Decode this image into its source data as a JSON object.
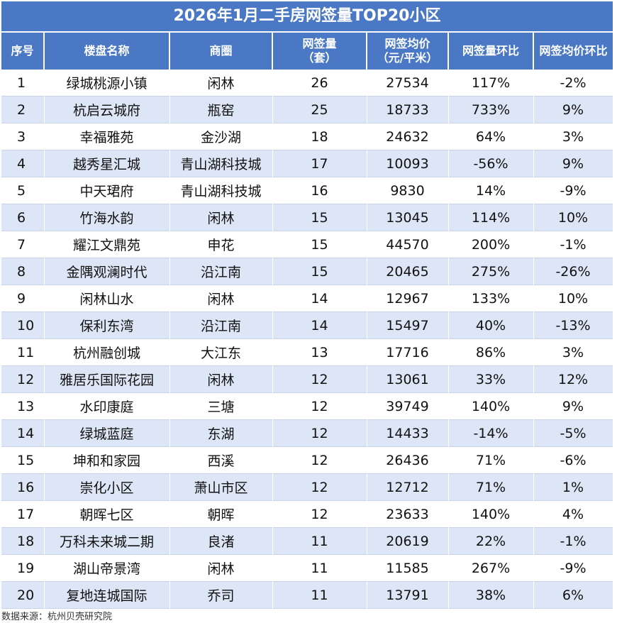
{
  "title": "2026年1月二手房网签量TOP20小区",
  "columns": {
    "no": "序号",
    "name": "楼盘名称",
    "area": "商圈",
    "volume_line1": "网签量",
    "volume_line2": "（套）",
    "price_line1": "网签均价",
    "price_line2": "（元/平米）",
    "volume_mom": "网签量环比",
    "price_mom": "网签均价环比"
  },
  "source": "数据来源：杭州贝壳研究院",
  "chart_data": {
    "type": "table",
    "title": "2026年1月二手房网签量TOP20小区",
    "rows": [
      {
        "no": "1",
        "name": "绿城桃源小镇",
        "area": "闲林",
        "volume": 26,
        "price": 27534,
        "volume_mom": "117%",
        "price_mom": "-2%"
      },
      {
        "no": "2",
        "name": "杭启云城府",
        "area": "瓶窑",
        "volume": 25,
        "price": 18733,
        "volume_mom": "733%",
        "price_mom": "9%"
      },
      {
        "no": "3",
        "name": "幸福雅苑",
        "area": "金沙湖",
        "volume": 18,
        "price": 24632,
        "volume_mom": "64%",
        "price_mom": "3%"
      },
      {
        "no": "4",
        "name": "越秀星汇城",
        "area": "青山湖科技城",
        "volume": 17,
        "price": 10093,
        "volume_mom": "-56%",
        "price_mom": "9%"
      },
      {
        "no": "5",
        "name": "中天珺府",
        "area": "青山湖科技城",
        "volume": 16,
        "price": 9830,
        "volume_mom": "14%",
        "price_mom": "-9%"
      },
      {
        "no": "6",
        "name": "竹海水韵",
        "area": "闲林",
        "volume": 15,
        "price": 13045,
        "volume_mom": "114%",
        "price_mom": "10%"
      },
      {
        "no": "7",
        "name": "耀江文鼎苑",
        "area": "申花",
        "volume": 15,
        "price": 44570,
        "volume_mom": "200%",
        "price_mom": "-1%"
      },
      {
        "no": "8",
        "name": "金隅观澜时代",
        "area": "沿江南",
        "volume": 15,
        "price": 20465,
        "volume_mom": "275%",
        "price_mom": "-26%"
      },
      {
        "no": "9",
        "name": "闲林山水",
        "area": "闲林",
        "volume": 14,
        "price": 12967,
        "volume_mom": "133%",
        "price_mom": "10%"
      },
      {
        "no": "10",
        "name": "保利东湾",
        "area": "沿江南",
        "volume": 14,
        "price": 15497,
        "volume_mom": "40%",
        "price_mom": "-13%"
      },
      {
        "no": "11",
        "name": "杭州融创城",
        "area": "大江东",
        "volume": 13,
        "price": 17716,
        "volume_mom": "86%",
        "price_mom": "3%"
      },
      {
        "no": "12",
        "name": "雅居乐国际花园",
        "area": "闲林",
        "volume": 12,
        "price": 13061,
        "volume_mom": "33%",
        "price_mom": "12%"
      },
      {
        "no": "13",
        "name": "水印康庭",
        "area": "三塘",
        "volume": 12,
        "price": 39749,
        "volume_mom": "140%",
        "price_mom": "9%"
      },
      {
        "no": "14",
        "name": "绿城蓝庭",
        "area": "东湖",
        "volume": 12,
        "price": 14433,
        "volume_mom": "-14%",
        "price_mom": "-5%"
      },
      {
        "no": "15",
        "name": "坤和和家园",
        "area": "西溪",
        "volume": 12,
        "price": 26436,
        "volume_mom": "71%",
        "price_mom": "-6%"
      },
      {
        "no": "16",
        "name": "崇化小区",
        "area": "萧山市区",
        "volume": 12,
        "price": 12712,
        "volume_mom": "71%",
        "price_mom": "1%"
      },
      {
        "no": "17",
        "name": "朝晖七区",
        "area": "朝晖",
        "volume": 12,
        "price": 23633,
        "volume_mom": "140%",
        "price_mom": "4%"
      },
      {
        "no": "18",
        "name": "万科未来城二期",
        "area": "良渚",
        "volume": 11,
        "price": 20619,
        "volume_mom": "22%",
        "price_mom": "-1%"
      },
      {
        "no": "19",
        "name": "湖山帝景湾",
        "area": "闲林",
        "volume": 11,
        "price": 11585,
        "volume_mom": "267%",
        "price_mom": "-9%"
      },
      {
        "no": "20",
        "name": "复地连城国际",
        "area": "乔司",
        "volume": 11,
        "price": 13791,
        "volume_mom": "38%",
        "price_mom": "6%"
      }
    ]
  }
}
